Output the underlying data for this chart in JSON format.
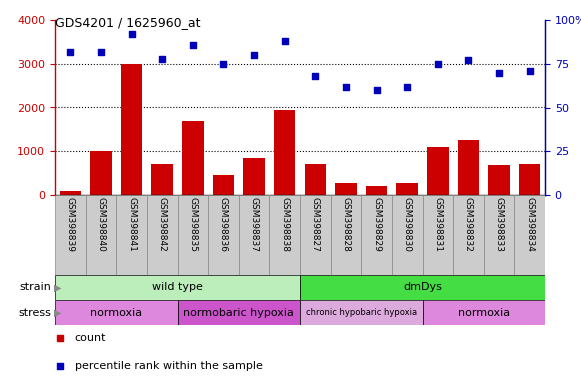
{
  "title": "GDS4201 / 1625960_at",
  "samples": [
    "GSM398839",
    "GSM398840",
    "GSM398841",
    "GSM398842",
    "GSM398835",
    "GSM398836",
    "GSM398837",
    "GSM398838",
    "GSM398827",
    "GSM398828",
    "GSM398829",
    "GSM398830",
    "GSM398831",
    "GSM398832",
    "GSM398833",
    "GSM398834"
  ],
  "counts": [
    100,
    1000,
    3000,
    700,
    1700,
    450,
    850,
    1950,
    700,
    270,
    200,
    280,
    1100,
    1250,
    680,
    720
  ],
  "percentiles": [
    82,
    82,
    92,
    78,
    86,
    75,
    80,
    88,
    68,
    62,
    60,
    62,
    75,
    77,
    70,
    71
  ],
  "ylim_left": [
    0,
    4000
  ],
  "ylim_right": [
    0,
    100
  ],
  "yticks_left": [
    0,
    1000,
    2000,
    3000,
    4000
  ],
  "yticks_right": [
    0,
    25,
    50,
    75,
    100
  ],
  "bar_color": "#cc0000",
  "dot_color": "#0000bb",
  "strain_groups": [
    {
      "label": "wild type",
      "start": 0,
      "end": 8,
      "color": "#bbeebb"
    },
    {
      "label": "dmDys",
      "start": 8,
      "end": 16,
      "color": "#44dd44"
    }
  ],
  "stress_groups": [
    {
      "label": "normoxia",
      "start": 0,
      "end": 4,
      "color": "#dd88dd"
    },
    {
      "label": "normobaric hypoxia",
      "start": 4,
      "end": 8,
      "color": "#cc55cc"
    },
    {
      "label": "chronic hypobaric hypoxia",
      "start": 8,
      "end": 12,
      "color": "#ddaadd"
    },
    {
      "label": "normoxia",
      "start": 12,
      "end": 16,
      "color": "#dd88dd"
    }
  ],
  "legend_count_color": "#cc0000",
  "legend_dot_color": "#0000bb",
  "sample_bg_color": "#cccccc",
  "sample_border_color": "#888888"
}
